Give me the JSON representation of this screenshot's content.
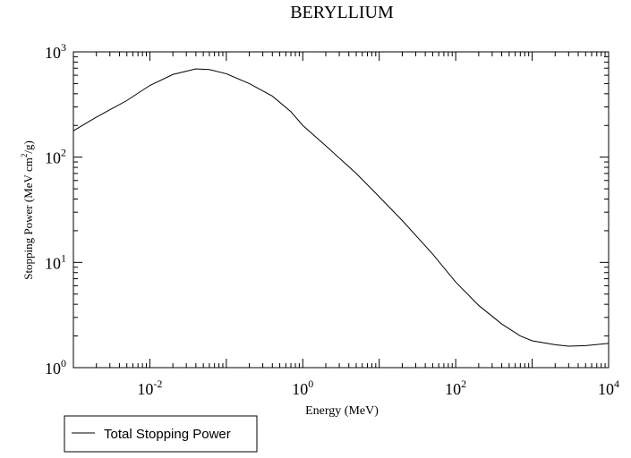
{
  "chart_data": {
    "type": "line",
    "title": "BERYLLIUM",
    "xlabel": "Energy (MeV)",
    "ylabel": {
      "prefix": "Stopping Power (MeV cm",
      "sup": "2",
      "suffix": "/g)"
    },
    "x_scale": "log",
    "y_scale": "log",
    "xlim": [
      0.001,
      10000
    ],
    "ylim": [
      1,
      1000
    ],
    "x_ticks": [
      {
        "base": "10",
        "exp": "-2",
        "value": 0.01
      },
      {
        "base": "10",
        "exp": "0",
        "value": 1
      },
      {
        "base": "10",
        "exp": "2",
        "value": 100
      },
      {
        "base": "10",
        "exp": "4",
        "value": 10000
      }
    ],
    "y_ticks": [
      {
        "base": "10",
        "exp": "0",
        "value": 1
      },
      {
        "base": "10",
        "exp": "1",
        "value": 10
      },
      {
        "base": "10",
        "exp": "2",
        "value": 100
      },
      {
        "base": "10",
        "exp": "3",
        "value": 1000
      }
    ],
    "grid": false,
    "legend_position": "bottom-left",
    "series": [
      {
        "name": "Total Stopping Power",
        "color": "#000000",
        "points": [
          [
            0.001,
            178
          ],
          [
            0.002,
            240
          ],
          [
            0.005,
            345
          ],
          [
            0.01,
            480
          ],
          [
            0.02,
            610
          ],
          [
            0.04,
            690
          ],
          [
            0.06,
            680
          ],
          [
            0.1,
            620
          ],
          [
            0.2,
            500
          ],
          [
            0.4,
            380
          ],
          [
            0.7,
            270
          ],
          [
            1,
            200
          ],
          [
            2,
            128
          ],
          [
            5,
            70
          ],
          [
            10,
            42
          ],
          [
            20,
            25
          ],
          [
            50,
            12
          ],
          [
            100,
            6.5
          ],
          [
            200,
            3.9
          ],
          [
            400,
            2.6
          ],
          [
            700,
            2.0
          ],
          [
            1000,
            1.8
          ],
          [
            2000,
            1.65
          ],
          [
            3000,
            1.6
          ],
          [
            5000,
            1.62
          ],
          [
            10000,
            1.7
          ]
        ]
      }
    ]
  }
}
